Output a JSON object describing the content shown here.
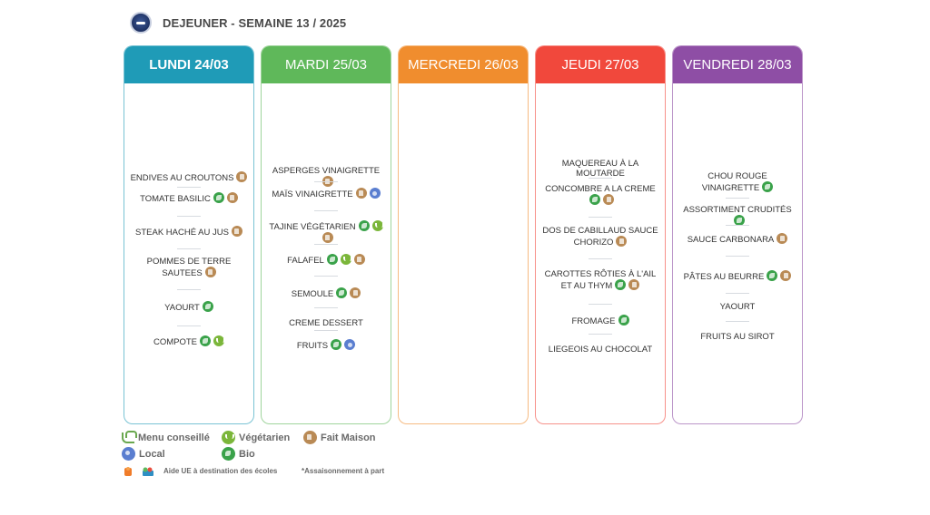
{
  "header": {
    "title": "DEJEUNER - SEMAINE 13 / 2025",
    "logo_icon": "school-logo-icon"
  },
  "colors": {
    "lundi": "#1f9bb7",
    "mardi": "#5fb85a",
    "mercredi": "#f08d2e",
    "jeudi": "#f1483c",
    "vendredi": "#8e4ea5"
  },
  "days": [
    {
      "label": "LUNDI 24/03",
      "items": [
        {
          "text": "ENDIVES AU CROUTONS",
          "icons": [
            "fait"
          ]
        },
        {
          "text": "TOMATE BASILIC",
          "icons": [
            "bio",
            "fait"
          ]
        },
        {
          "text": "STEAK HACHÉ AU JUS",
          "icons": [
            "fait"
          ]
        },
        {
          "text": "POMMES DE TERRE SAUTEES",
          "icons": [
            "fait"
          ]
        },
        {
          "text": "YAOURT",
          "icons": [
            "bio"
          ]
        },
        {
          "text": "COMPOTE",
          "icons": [
            "bio",
            "veg"
          ]
        }
      ]
    },
    {
      "label": "MARDI 25/03",
      "items": [
        {
          "text": "ASPERGES VINAIGRETTE",
          "icons": [
            "fait"
          ]
        },
        {
          "text": "MAÏS VINAIGRETTE",
          "icons": [
            "fait",
            "local"
          ]
        },
        {
          "text": "TAJINE VÉGÉTARIEN",
          "icons": [
            "bio",
            "veg",
            "fait"
          ]
        },
        {
          "text": "FALAFEL",
          "icons": [
            "bio",
            "veg",
            "fait"
          ]
        },
        {
          "text": "SEMOULE",
          "icons": [
            "bio",
            "fait"
          ]
        },
        {
          "text": "CREME DESSERT",
          "icons": []
        },
        {
          "text": "FRUITS",
          "icons": [
            "bio",
            "local"
          ]
        }
      ]
    },
    {
      "label": "MERCREDI 26/03",
      "items": []
    },
    {
      "label": "JEUDI 27/03",
      "items": [
        {
          "text": "MAQUEREAU À LA MOUTARDE",
          "icons": []
        },
        {
          "text": "CONCOMBRE A LA CREME",
          "icons": [
            "bio",
            "fait"
          ]
        },
        {
          "text": "DOS DE CABILLAUD SAUCE CHORIZO",
          "icons": [
            "fait"
          ]
        },
        {
          "text": "CAROTTES RÔTIES À L'AIL ET AU THYM",
          "icons": [
            "bio",
            "fait"
          ]
        },
        {
          "text": "FROMAGE",
          "icons": [
            "bio"
          ]
        },
        {
          "text": "LIEGEOIS AU CHOCOLAT",
          "icons": []
        }
      ]
    },
    {
      "label": "VENDREDI 28/03",
      "items": [
        {
          "text": "CHOU ROUGE VINAIGRETTE",
          "icons": [
            "bio"
          ]
        },
        {
          "text": "ASSORTIMENT CRUDITÉS",
          "icons": [
            "bio"
          ]
        },
        {
          "text": "SAUCE CARBONARA",
          "icons": [
            "fait"
          ]
        },
        {
          "text": "PÂTES AU BEURRE",
          "icons": [
            "bio",
            "fait"
          ]
        },
        {
          "text": "YAOURT",
          "icons": []
        },
        {
          "text": "FRUITS AU SIROT",
          "icons": []
        }
      ]
    }
  ],
  "legend": {
    "menu_conseille": "Menu conseillé",
    "vegetarien": "Végétarien",
    "fait_maison": "Fait Maison",
    "local": "Local",
    "bio": "Bio",
    "aide_ue": "Aide UE à destination des écoles",
    "assaisonnement": "*Assaisonnement à part"
  }
}
